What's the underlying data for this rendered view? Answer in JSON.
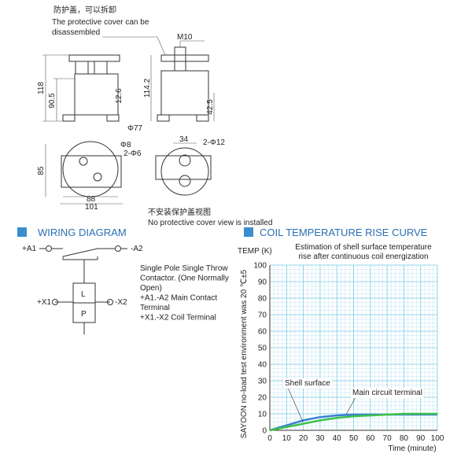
{
  "drawing": {
    "cover_note_cn": "防护盖，可以拆卸",
    "cover_note_en": [
      "The protective cover can be",
      "disassembled"
    ],
    "dims": {
      "thread": "M10",
      "height_total": "118",
      "height_body": "90.5",
      "terminal_front": "12.6",
      "height_side": "114.2",
      "side_low": "42.5",
      "dia_body": "Φ77",
      "dia_stud": "Φ8",
      "holes_small": "2-Φ6",
      "terminal_spacing": "34",
      "holes_large": "2-Φ12",
      "depth": "85",
      "width_inner": "88",
      "width_outer": "101"
    },
    "note_cn": "不安装保护盖视图",
    "note_en": "No protective cover view is installed"
  },
  "wiring": {
    "title": "WIRING DIAGRAM",
    "a1": "+A1",
    "a2": "-A2",
    "x1": "+X1",
    "x2": "-X2",
    "coil_l": "L",
    "coil_p": "P",
    "description": [
      "Single Pole Single Throw",
      "Contactor. (One Normally",
      "Open)",
      "+A1.-A2  Main Contact",
      "Terminal",
      "+X1.-X2 Coil Terminal"
    ]
  },
  "chart_data": {
    "type": "line",
    "title": "COIL TEMPERATURE RISE CURVE",
    "subtitle": [
      "Estimation of shell surface temperature",
      "rise after continuous coil energization"
    ],
    "y_label": "TEMP (K)",
    "side_note": "SAYOON no-load test environment was 20 ℃±5",
    "x_label": "Time (minute)",
    "x": [
      0,
      10,
      20,
      30,
      40,
      50,
      60,
      70,
      80,
      90,
      100
    ],
    "series": [
      {
        "name": "Shell surface",
        "color": "#3b7fd4",
        "values": [
          0,
          3,
          6,
          8,
          9,
          9.5,
          9.5,
          9.5,
          9.5,
          9.5,
          9.5
        ]
      },
      {
        "name": "Main circuit terminal",
        "color": "#3cc24a",
        "values": [
          0,
          2,
          4,
          6,
          7.5,
          8.5,
          9,
          9.5,
          10,
          10,
          10
        ]
      }
    ],
    "xlim": [
      0,
      100
    ],
    "ylim": [
      0,
      100
    ],
    "xticks": [
      0,
      10,
      20,
      30,
      40,
      50,
      60,
      70,
      80,
      90,
      100
    ],
    "yticks": [
      0,
      10,
      20,
      30,
      40,
      50,
      60,
      70,
      80,
      90,
      100
    ],
    "grid": true
  }
}
